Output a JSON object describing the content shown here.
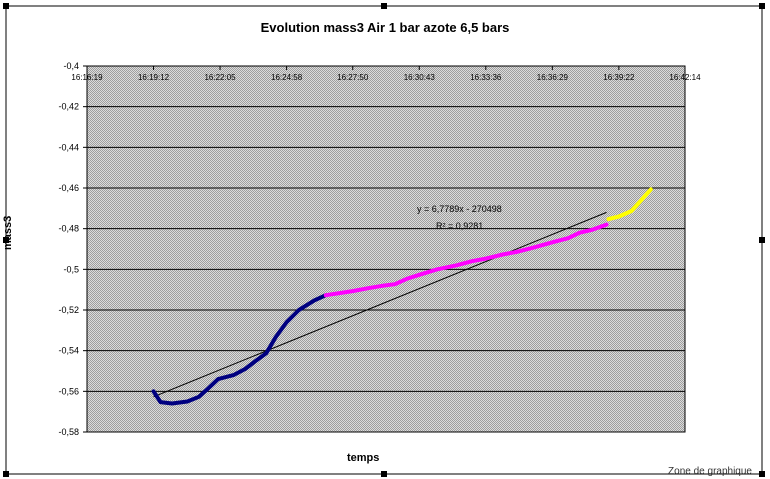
{
  "chart_data": {
    "type": "line",
    "title": "Evolution mass3 Air 1 bar azote 6,5 bars",
    "xlabel": "temps",
    "ylabel": "mass3",
    "xlim": [
      "16:16:19",
      "16:42:14"
    ],
    "ylim": [
      -0.58,
      -0.4
    ],
    "x_ticks": [
      "16:16:19",
      "16:19:12",
      "16:22:05",
      "16:24:58",
      "16:27:50",
      "16:30:43",
      "16:33:36",
      "16:36:29",
      "16:39:22",
      "16:42:14"
    ],
    "y_ticks": [
      "-0,4",
      "-0,42",
      "-0,44",
      "-0,46",
      "-0,48",
      "-0,5",
      "-0,52",
      "-0,54",
      "-0,56",
      "-0,58"
    ],
    "grid": true,
    "series": [
      {
        "color": "#000080",
        "x": [
          "16:19:12",
          "16:19:30",
          "16:20:00",
          "16:20:40",
          "16:21:10",
          "16:21:30",
          "16:22:00",
          "16:22:40",
          "16:23:10",
          "16:23:40",
          "16:24:05",
          "16:24:30",
          "16:24:58",
          "16:25:30",
          "16:26:10",
          "16:26:40"
        ],
        "y": [
          -0.56,
          -0.5653,
          -0.566,
          -0.565,
          -0.5627,
          -0.5593,
          -0.554,
          -0.552,
          -0.549,
          -0.5447,
          -0.5413,
          -0.5333,
          -0.526,
          -0.52,
          -0.5153,
          -0.5127
        ]
      },
      {
        "color": "#ff00ff",
        "x": [
          "16:26:40",
          "16:27:50",
          "16:28:30",
          "16:29:10",
          "16:29:40",
          "16:30:10",
          "16:30:43",
          "16:31:30",
          "16:32:20",
          "16:33:00",
          "16:33:36",
          "16:34:20",
          "16:35:00",
          "16:35:40",
          "16:36:29",
          "16:37:10",
          "16:37:40",
          "16:38:10",
          "16:38:50"
        ],
        "y": [
          -0.5127,
          -0.5107,
          -0.5093,
          -0.508,
          -0.5073,
          -0.5047,
          -0.5027,
          -0.5,
          -0.498,
          -0.496,
          -0.4947,
          -0.4927,
          -0.4913,
          -0.4893,
          -0.4867,
          -0.4847,
          -0.482,
          -0.4807,
          -0.478
        ]
      },
      {
        "color": "#ffff00",
        "x": [
          "16:38:55",
          "16:39:22",
          "16:39:55",
          "16:40:20",
          "16:40:45"
        ],
        "y": [
          -0.4753,
          -0.474,
          -0.4713,
          -0.466,
          -0.4607
        ]
      }
    ],
    "trendline": {
      "x": [
        "16:19:12",
        "16:38:50"
      ],
      "y": [
        -0.5627,
        -0.472
      ],
      "equation": "y = 6,7789x - 270498",
      "r2": "R² = 0,9281"
    },
    "annotations": [
      "Zone de graphique"
    ]
  },
  "colors": {
    "plot_bg": "#c8c8c8",
    "chart_border": "#000000",
    "gridline": "#000000",
    "trendline": "#000000"
  }
}
